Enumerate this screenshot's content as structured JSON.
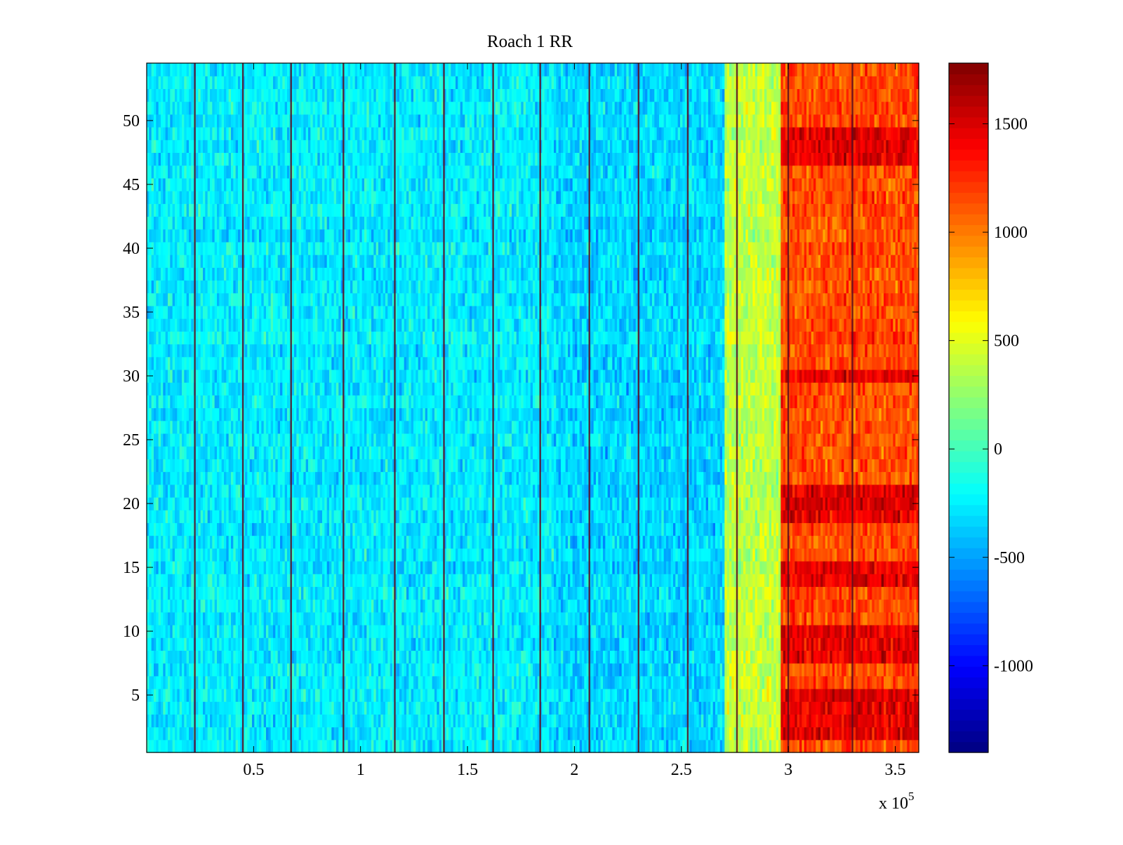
{
  "chart_data": {
    "type": "heatmap",
    "title": "Roach 1 RR",
    "xlabel": "",
    "ylabel": "",
    "x_range": [
      0,
      361000
    ],
    "y_range": [
      0.5,
      54.5
    ],
    "x_ticks": [
      50000,
      100000,
      150000,
      200000,
      250000,
      300000,
      350000
    ],
    "x_tick_labels": [
      "0.5",
      "1",
      "1.5",
      "2",
      "2.5",
      "3",
      "3.5"
    ],
    "x_exponent_label": "x 10",
    "x_exponent_power": "5",
    "y_ticks": [
      5,
      10,
      15,
      20,
      25,
      30,
      35,
      40,
      45,
      50
    ],
    "y_tick_labels": [
      "5",
      "10",
      "15",
      "20",
      "25",
      "30",
      "35",
      "40",
      "45",
      "50"
    ],
    "n_rows": 54,
    "colormap": "jet",
    "colorbar": {
      "range": [
        -1400,
        1780
      ],
      "ticks": [
        -1000,
        -500,
        0,
        500,
        1000,
        1500
      ],
      "tick_labels": [
        "-1000",
        "-500",
        "0",
        "500",
        "1000",
        "1500"
      ]
    },
    "segment_boundaries_x": [
      22500,
      45000,
      67500,
      92000,
      116000,
      139000,
      162000,
      184000,
      207000,
      230000,
      253000,
      276000,
      300000,
      330000
    ],
    "region_means": [
      {
        "x_start": 0,
        "x_end": 270000,
        "mean_value": -250,
        "description_value_range": [
          -900,
          400
        ]
      },
      {
        "x_start": 270000,
        "x_end": 296000,
        "mean_value": 400,
        "description_value_range": [
          0,
          800
        ]
      },
      {
        "x_start": 296000,
        "x_end": 361000,
        "mean_value": 1150,
        "description_value_range": [
          700,
          1780
        ]
      }
    ],
    "high_rows": [
      2,
      3,
      4,
      5,
      8,
      9,
      10,
      14,
      15,
      19,
      20,
      21,
      30,
      47,
      48,
      49
    ]
  }
}
